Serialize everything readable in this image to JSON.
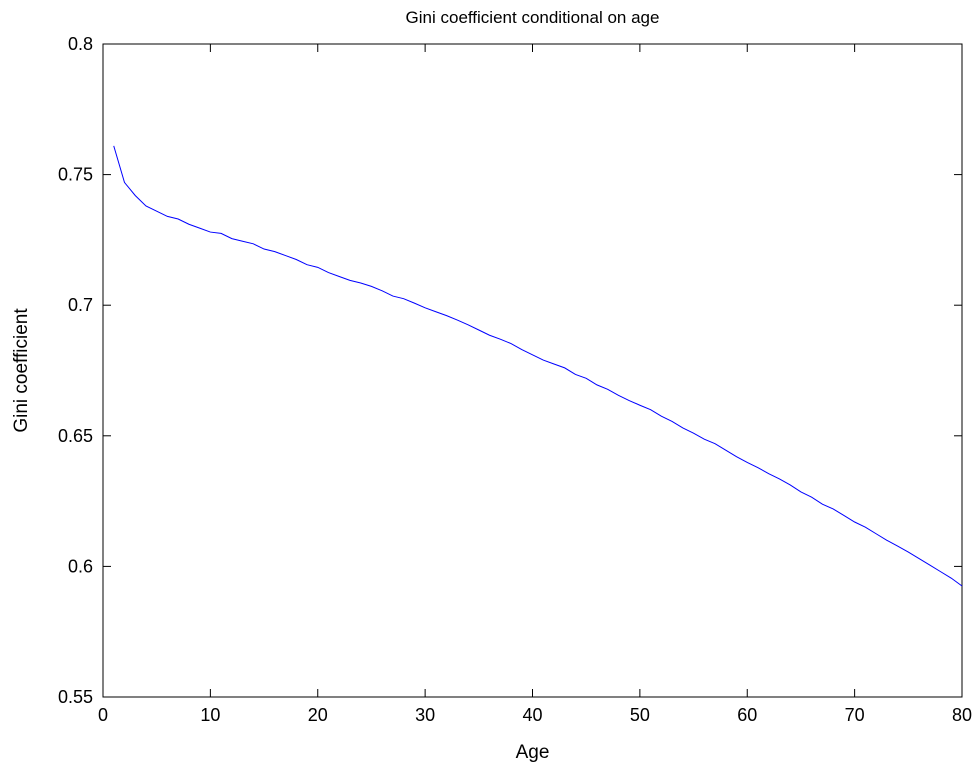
{
  "chart_data": {
    "type": "line",
    "title": "Gini coefficient conditional on age",
    "xlabel": "Age",
    "ylabel": "Gini coefficient",
    "xlim": [
      0,
      80
    ],
    "ylim": [
      0.55,
      0.8
    ],
    "x_ticks": [
      0,
      10,
      20,
      30,
      40,
      50,
      60,
      70,
      80
    ],
    "y_ticks": [
      0.55,
      0.6,
      0.65,
      0.7,
      0.75,
      0.8
    ],
    "x_tick_labels": [
      "0",
      "10",
      "20",
      "30",
      "40",
      "50",
      "60",
      "70",
      "80"
    ],
    "y_tick_labels": [
      "0.55",
      "0.6",
      "0.65",
      "0.7",
      "0.75",
      "0.8"
    ],
    "grid": false,
    "line_color": "#0000ff",
    "series": [
      {
        "x": [
          1,
          2,
          3,
          4,
          5,
          6,
          7,
          8,
          9,
          10,
          11,
          12,
          13,
          14,
          15,
          16,
          17,
          18,
          19,
          20,
          21,
          22,
          23,
          24,
          25,
          26,
          27,
          28,
          29,
          30,
          31,
          32,
          33,
          34,
          35,
          36,
          37,
          38,
          39,
          40,
          41,
          42,
          43,
          44,
          45,
          46,
          47,
          48,
          49,
          50,
          51,
          52,
          53,
          54,
          55,
          56,
          57,
          58,
          59,
          60,
          61,
          62,
          63,
          64,
          65,
          66,
          67,
          68,
          69,
          70,
          71,
          72,
          73,
          74,
          75,
          76,
          77,
          78,
          79,
          80
        ],
        "y": [
          0.761,
          0.747,
          0.742,
          0.738,
          0.736,
          0.734,
          0.733,
          0.731,
          0.7295,
          0.728,
          0.7275,
          0.7255,
          0.7245,
          0.7235,
          0.7215,
          0.7205,
          0.719,
          0.7175,
          0.7155,
          0.7145,
          0.7125,
          0.711,
          0.7095,
          0.7085,
          0.7072,
          0.7055,
          0.7035,
          0.7025,
          0.7008,
          0.699,
          0.6975,
          0.696,
          0.6943,
          0.6925,
          0.6905,
          0.6885,
          0.687,
          0.6853,
          0.683,
          0.681,
          0.679,
          0.6775,
          0.676,
          0.6735,
          0.672,
          0.6695,
          0.6678,
          0.6655,
          0.6635,
          0.6617,
          0.66,
          0.6575,
          0.6555,
          0.653,
          0.651,
          0.6487,
          0.647,
          0.6445,
          0.642,
          0.6398,
          0.6378,
          0.6355,
          0.6335,
          0.6312,
          0.6285,
          0.6265,
          0.6238,
          0.622,
          0.6195,
          0.617,
          0.615,
          0.6125,
          0.61,
          0.6078,
          0.6055,
          0.603,
          0.6005,
          0.598,
          0.5955,
          0.5925
        ]
      }
    ]
  }
}
